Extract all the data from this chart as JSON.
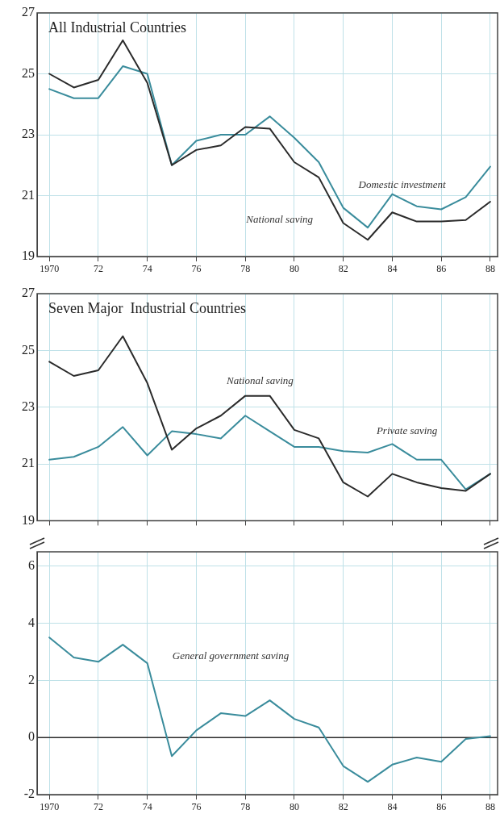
{
  "chart_data": [
    {
      "type": "line",
      "title": "All Industrial Countries",
      "x": [
        1970,
        1971,
        1972,
        1973,
        1974,
        1975,
        1976,
        1977,
        1978,
        1979,
        1980,
        1981,
        1982,
        1983,
        1984,
        1985,
        1986,
        1987,
        1988
      ],
      "series": [
        {
          "name": "National saving",
          "color": "#2b2b2b",
          "values": [
            25.0,
            24.55,
            24.8,
            26.1,
            24.7,
            22.0,
            22.5,
            22.65,
            23.25,
            23.2,
            22.1,
            21.6,
            20.1,
            19.55,
            20.45,
            20.15,
            20.15,
            20.2,
            20.8
          ]
        },
        {
          "name": "Domestic investment",
          "color": "#3a8c9c",
          "values": [
            24.5,
            24.2,
            24.2,
            25.25,
            25.0,
            22.0,
            22.8,
            23.0,
            23.0,
            23.6,
            22.9,
            22.1,
            20.6,
            19.95,
            21.05,
            20.65,
            20.55,
            20.95,
            21.95
          ]
        }
      ],
      "xlim": [
        1969.5,
        1988.3
      ],
      "xticks": [
        {
          "value": 1970,
          "label": "1970"
        },
        {
          "value": 1972,
          "label": "72"
        },
        {
          "value": 1974,
          "label": "74"
        },
        {
          "value": 1976,
          "label": "76"
        },
        {
          "value": 1978,
          "label": "78"
        },
        {
          "value": 1980,
          "label": "80"
        },
        {
          "value": 1982,
          "label": "82"
        },
        {
          "value": 1984,
          "label": "84"
        },
        {
          "value": 1986,
          "label": "86"
        },
        {
          "value": 1988,
          "label": "88"
        }
      ],
      "ylim": [
        19,
        27
      ],
      "yticks": [
        19,
        21,
        23,
        25,
        27
      ],
      "grid": true,
      "legend": false,
      "marker": "none",
      "line_style": "solid"
    },
    {
      "type": "line",
      "title": "Seven Major  Industrial Countries",
      "x": [
        1970,
        1971,
        1972,
        1973,
        1974,
        1975,
        1976,
        1977,
        1978,
        1979,
        1980,
        1981,
        1982,
        1983,
        1984,
        1985,
        1986,
        1987,
        1988
      ],
      "series": [
        {
          "name": "National saving",
          "color": "#2b2b2b",
          "values": [
            24.6,
            24.1,
            24.3,
            25.5,
            23.85,
            21.5,
            22.25,
            22.7,
            23.4,
            23.4,
            22.2,
            21.9,
            20.35,
            19.85,
            20.65,
            20.35,
            20.15,
            20.05,
            20.65
          ]
        },
        {
          "name": "Private saving",
          "color": "#3a8c9c",
          "values": [
            21.15,
            21.25,
            21.6,
            22.3,
            21.3,
            22.15,
            22.05,
            21.9,
            22.7,
            22.15,
            21.6,
            21.6,
            21.45,
            21.4,
            21.7,
            21.15,
            21.15,
            20.1,
            20.65
          ]
        }
      ],
      "xlim": [
        1969.5,
        1988.3
      ],
      "xticks": [
        {
          "value": 1970,
          "label": null
        },
        {
          "value": 1972,
          "label": null
        },
        {
          "value": 1974,
          "label": null
        },
        {
          "value": 1976,
          "label": null
        },
        {
          "value": 1978,
          "label": null
        },
        {
          "value": 1980,
          "label": null
        },
        {
          "value": 1982,
          "label": null
        },
        {
          "value": 1984,
          "label": null
        },
        {
          "value": 1986,
          "label": null
        },
        {
          "value": 1988,
          "label": null
        }
      ],
      "ylim": [
        19,
        27
      ],
      "yticks": [
        19,
        21,
        23,
        25,
        27
      ],
      "tick_labels": "y",
      "grid": true,
      "legend": false,
      "marker": "none",
      "line_style": "solid"
    },
    {
      "type": "line",
      "x": [
        1970,
        1971,
        1972,
        1973,
        1974,
        1975,
        1976,
        1977,
        1978,
        1979,
        1980,
        1981,
        1982,
        1983,
        1984,
        1985,
        1986,
        1987,
        1988
      ],
      "series": [
        {
          "name": "General government saving",
          "color": "#3a8c9c",
          "values": [
            3.5,
            2.8,
            2.65,
            3.25,
            2.6,
            -0.65,
            0.25,
            0.85,
            0.75,
            1.3,
            0.65,
            0.35,
            -1.0,
            -1.55,
            -0.95,
            -0.7,
            -0.85,
            -0.05,
            0.05
          ]
        }
      ],
      "xlim": [
        1969.5,
        1988.3
      ],
      "xticks": [
        {
          "value": 1970,
          "label": "1970"
        },
        {
          "value": 1972,
          "label": "72"
        },
        {
          "value": 1974,
          "label": "74"
        },
        {
          "value": 1976,
          "label": "76"
        },
        {
          "value": 1978,
          "label": "78"
        },
        {
          "value": 1980,
          "label": "80"
        },
        {
          "value": 1982,
          "label": "82"
        },
        {
          "value": 1984,
          "label": "84"
        },
        {
          "value": 1986,
          "label": "86"
        },
        {
          "value": 1988,
          "label": "88"
        }
      ],
      "ylim": [
        -2,
        6.5
      ],
      "yticks": [
        -2,
        0,
        2,
        4,
        6
      ],
      "ref_lines": [
        {
          "axis": "y",
          "value": 0,
          "color": "#2b2b2b"
        }
      ],
      "grid": true,
      "legend": false,
      "marker": "none",
      "line_style": "solid"
    }
  ]
}
